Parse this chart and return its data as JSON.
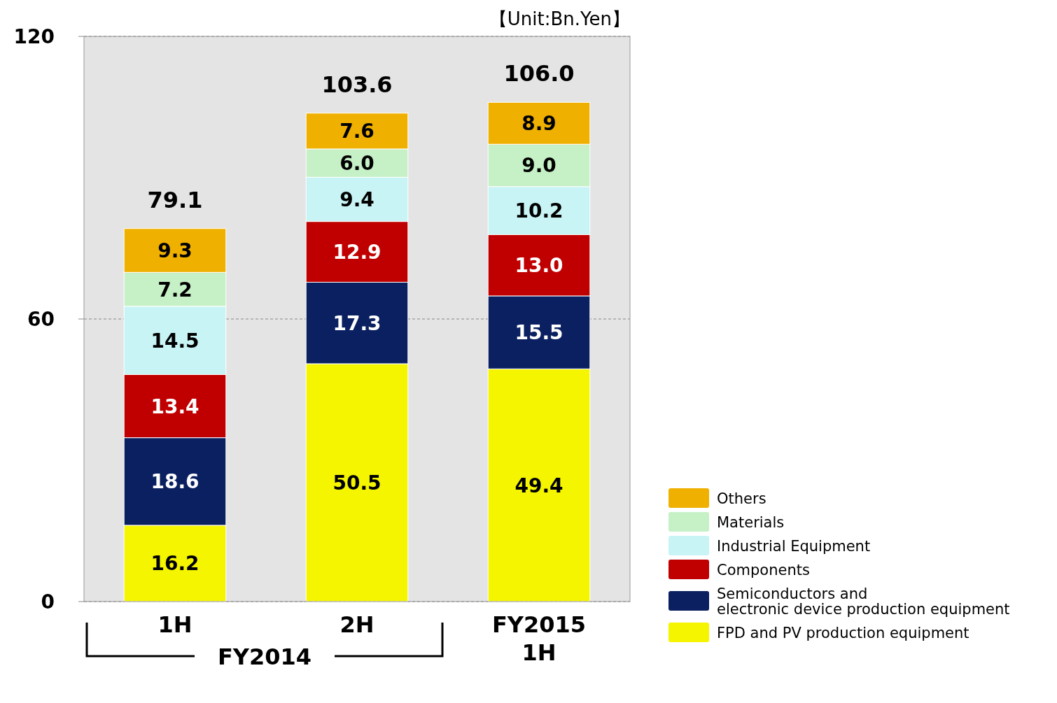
{
  "chart_data": {
    "type": "bar",
    "stacked": true,
    "categories": [
      "1H",
      "2H",
      "FY2015\n1H"
    ],
    "series": [
      {
        "name": "FPD and PV production equipment",
        "color": "#f5f500",
        "values": [
          16.2,
          50.5,
          49.4
        ]
      },
      {
        "name": "Semiconductors and\nelectronic device production equipment",
        "color": "#0a2060",
        "values": [
          18.6,
          17.3,
          15.5
        ]
      },
      {
        "name": "Components",
        "color": "#c00000",
        "values": [
          13.4,
          12.9,
          13.0
        ],
        "value_labels": [
          "13.4",
          "12.9",
          "13.0"
        ]
      },
      {
        "name": "Industrial Equipment",
        "color": "#c8f4f6",
        "values": [
          14.5,
          9.4,
          10.2
        ]
      },
      {
        "name": "Materials",
        "color": "#c6f0c6",
        "values": [
          7.2,
          6.0,
          9.0
        ],
        "value_labels": [
          "7.2",
          "6.0",
          "9.0"
        ]
      },
      {
        "name": "Others",
        "color": "#f0b000",
        "values": [
          9.3,
          7.6,
          8.9
        ]
      }
    ],
    "ylim": [
      0,
      120
    ],
    "yticks": [
      0,
      60,
      120
    ],
    "grid": "y",
    "legend": "right",
    "data_labels": true,
    "totals": [
      "79.1",
      "103.6",
      "106.0"
    ],
    "annotations": [
      "【Unit:Bn.Yen】",
      "FY2014"
    ]
  }
}
